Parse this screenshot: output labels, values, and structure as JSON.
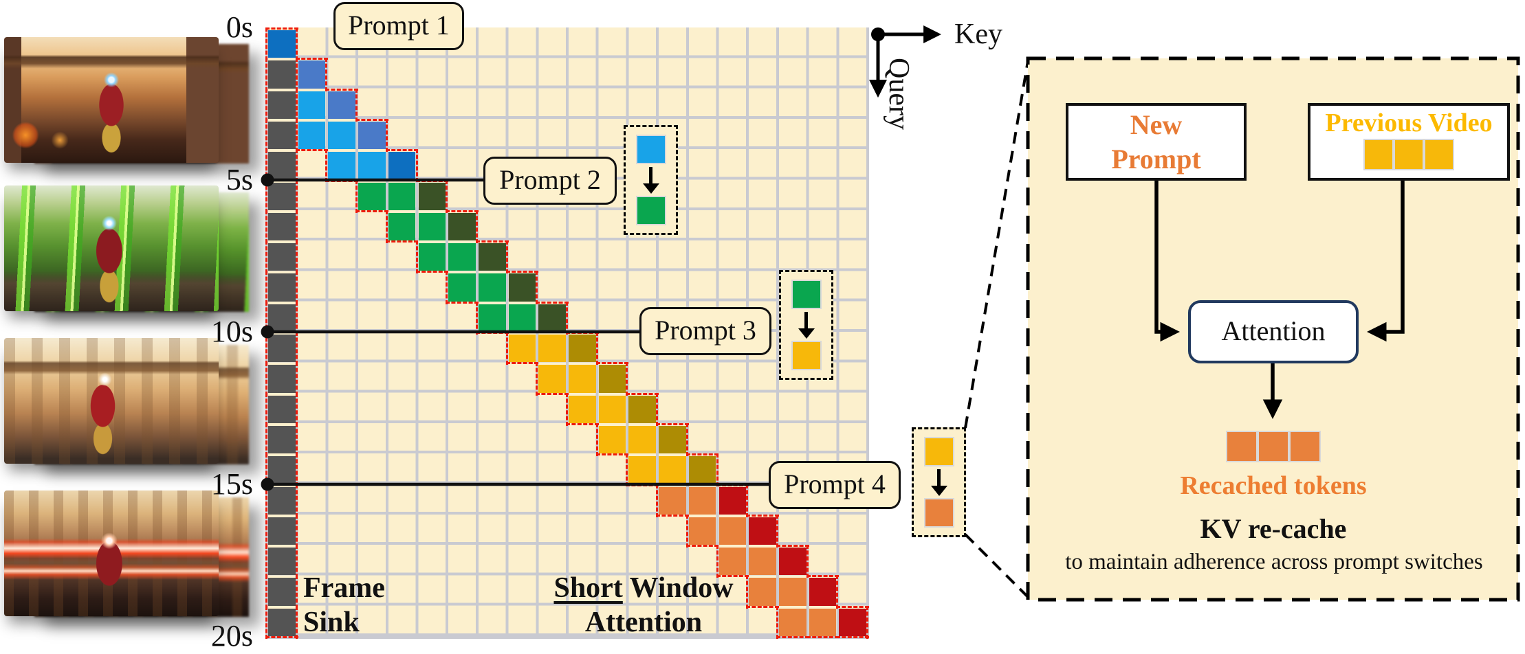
{
  "figure": {
    "timestamps": [
      "0s",
      "5s",
      "10s",
      "15s",
      "20s"
    ],
    "prompts": [
      "Prompt 1",
      "Prompt 2",
      "Prompt 3",
      "Prompt 4"
    ],
    "axes": {
      "key": "Key",
      "query": "Query"
    },
    "frame_sink": {
      "line1": "Frame",
      "line2": "Sink"
    },
    "short_window": {
      "underlined": "Short",
      "rest": " Window",
      "line2": "Attention"
    }
  },
  "grid": {
    "rows": 20,
    "cols": 20,
    "background": "#fcf0cd",
    "line_color": "#c9cad1",
    "outline_color": "#ee1c0c",
    "sink": {
      "col": 0,
      "color": "#545454"
    },
    "palette": {
      "b1": "#0d6fc0",
      "b2": "#4a7ac8",
      "b3": "#18a3e8",
      "g": "#0aa64f",
      "gd": "#3a5226",
      "y": "#f7b80a",
      "yd": "#ad8c04",
      "o": "#e8813c",
      "rd": "#bf0f14"
    },
    "cells": [
      {
        "r": 0,
        "c": 0,
        "k": "b1"
      },
      {
        "r": 1,
        "c": 1,
        "k": "b2"
      },
      {
        "r": 2,
        "c": 1,
        "k": "b3"
      },
      {
        "r": 2,
        "c": 2,
        "k": "b2"
      },
      {
        "r": 3,
        "c": 1,
        "k": "b3"
      },
      {
        "r": 3,
        "c": 2,
        "k": "b3"
      },
      {
        "r": 3,
        "c": 3,
        "k": "b2"
      },
      {
        "r": 4,
        "c": 2,
        "k": "b3"
      },
      {
        "r": 4,
        "c": 3,
        "k": "b3"
      },
      {
        "r": 4,
        "c": 4,
        "k": "b1"
      },
      {
        "r": 5,
        "c": 3,
        "k": "g"
      },
      {
        "r": 5,
        "c": 4,
        "k": "g"
      },
      {
        "r": 5,
        "c": 5,
        "k": "gd"
      },
      {
        "r": 6,
        "c": 4,
        "k": "g"
      },
      {
        "r": 6,
        "c": 5,
        "k": "g"
      },
      {
        "r": 6,
        "c": 6,
        "k": "gd"
      },
      {
        "r": 7,
        "c": 5,
        "k": "g"
      },
      {
        "r": 7,
        "c": 6,
        "k": "g"
      },
      {
        "r": 7,
        "c": 7,
        "k": "gd"
      },
      {
        "r": 8,
        "c": 6,
        "k": "g"
      },
      {
        "r": 8,
        "c": 7,
        "k": "g"
      },
      {
        "r": 8,
        "c": 8,
        "k": "gd"
      },
      {
        "r": 9,
        "c": 7,
        "k": "g"
      },
      {
        "r": 9,
        "c": 8,
        "k": "g"
      },
      {
        "r": 9,
        "c": 9,
        "k": "gd"
      },
      {
        "r": 10,
        "c": 8,
        "k": "y"
      },
      {
        "r": 10,
        "c": 9,
        "k": "y"
      },
      {
        "r": 10,
        "c": 10,
        "k": "yd"
      },
      {
        "r": 11,
        "c": 9,
        "k": "y"
      },
      {
        "r": 11,
        "c": 10,
        "k": "y"
      },
      {
        "r": 11,
        "c": 11,
        "k": "yd"
      },
      {
        "r": 12,
        "c": 10,
        "k": "y"
      },
      {
        "r": 12,
        "c": 11,
        "k": "y"
      },
      {
        "r": 12,
        "c": 12,
        "k": "yd"
      },
      {
        "r": 13,
        "c": 11,
        "k": "y"
      },
      {
        "r": 13,
        "c": 12,
        "k": "y"
      },
      {
        "r": 13,
        "c": 13,
        "k": "yd"
      },
      {
        "r": 14,
        "c": 12,
        "k": "y"
      },
      {
        "r": 14,
        "c": 13,
        "k": "y"
      },
      {
        "r": 14,
        "c": 14,
        "k": "yd"
      },
      {
        "r": 15,
        "c": 13,
        "k": "o"
      },
      {
        "r": 15,
        "c": 14,
        "k": "o"
      },
      {
        "r": 15,
        "c": 15,
        "k": "rd"
      },
      {
        "r": 16,
        "c": 14,
        "k": "o"
      },
      {
        "r": 16,
        "c": 15,
        "k": "o"
      },
      {
        "r": 16,
        "c": 16,
        "k": "rd"
      },
      {
        "r": 17,
        "c": 15,
        "k": "o"
      },
      {
        "r": 17,
        "c": 16,
        "k": "o"
      },
      {
        "r": 17,
        "c": 17,
        "k": "rd"
      },
      {
        "r": 18,
        "c": 16,
        "k": "o"
      },
      {
        "r": 18,
        "c": 17,
        "k": "o"
      },
      {
        "r": 18,
        "c": 18,
        "k": "rd"
      },
      {
        "r": 19,
        "c": 17,
        "k": "o"
      },
      {
        "r": 19,
        "c": 18,
        "k": "o"
      },
      {
        "r": 19,
        "c": 19,
        "k": "rd"
      }
    ]
  },
  "legends": [
    {
      "from": "b3",
      "to": "g"
    },
    {
      "from": "g",
      "to": "y"
    },
    {
      "from": "y",
      "to": "o"
    }
  ],
  "panel": {
    "new_prompt": {
      "line1": "New",
      "line2": "Prompt",
      "color": "#e87b35"
    },
    "previous_video": {
      "label": "Previous Video",
      "color": "#fcb900",
      "token_count": 3,
      "token_color": "#f7b80a"
    },
    "attention": "Attention",
    "output_tokens": {
      "count": 3,
      "color": "#e8813c"
    },
    "recached": {
      "label": "Recached tokens",
      "color": "#ed7d31"
    },
    "kv_title": "KV re-cache",
    "kv_subtitle": "to maintain adherence across prompt switches"
  }
}
